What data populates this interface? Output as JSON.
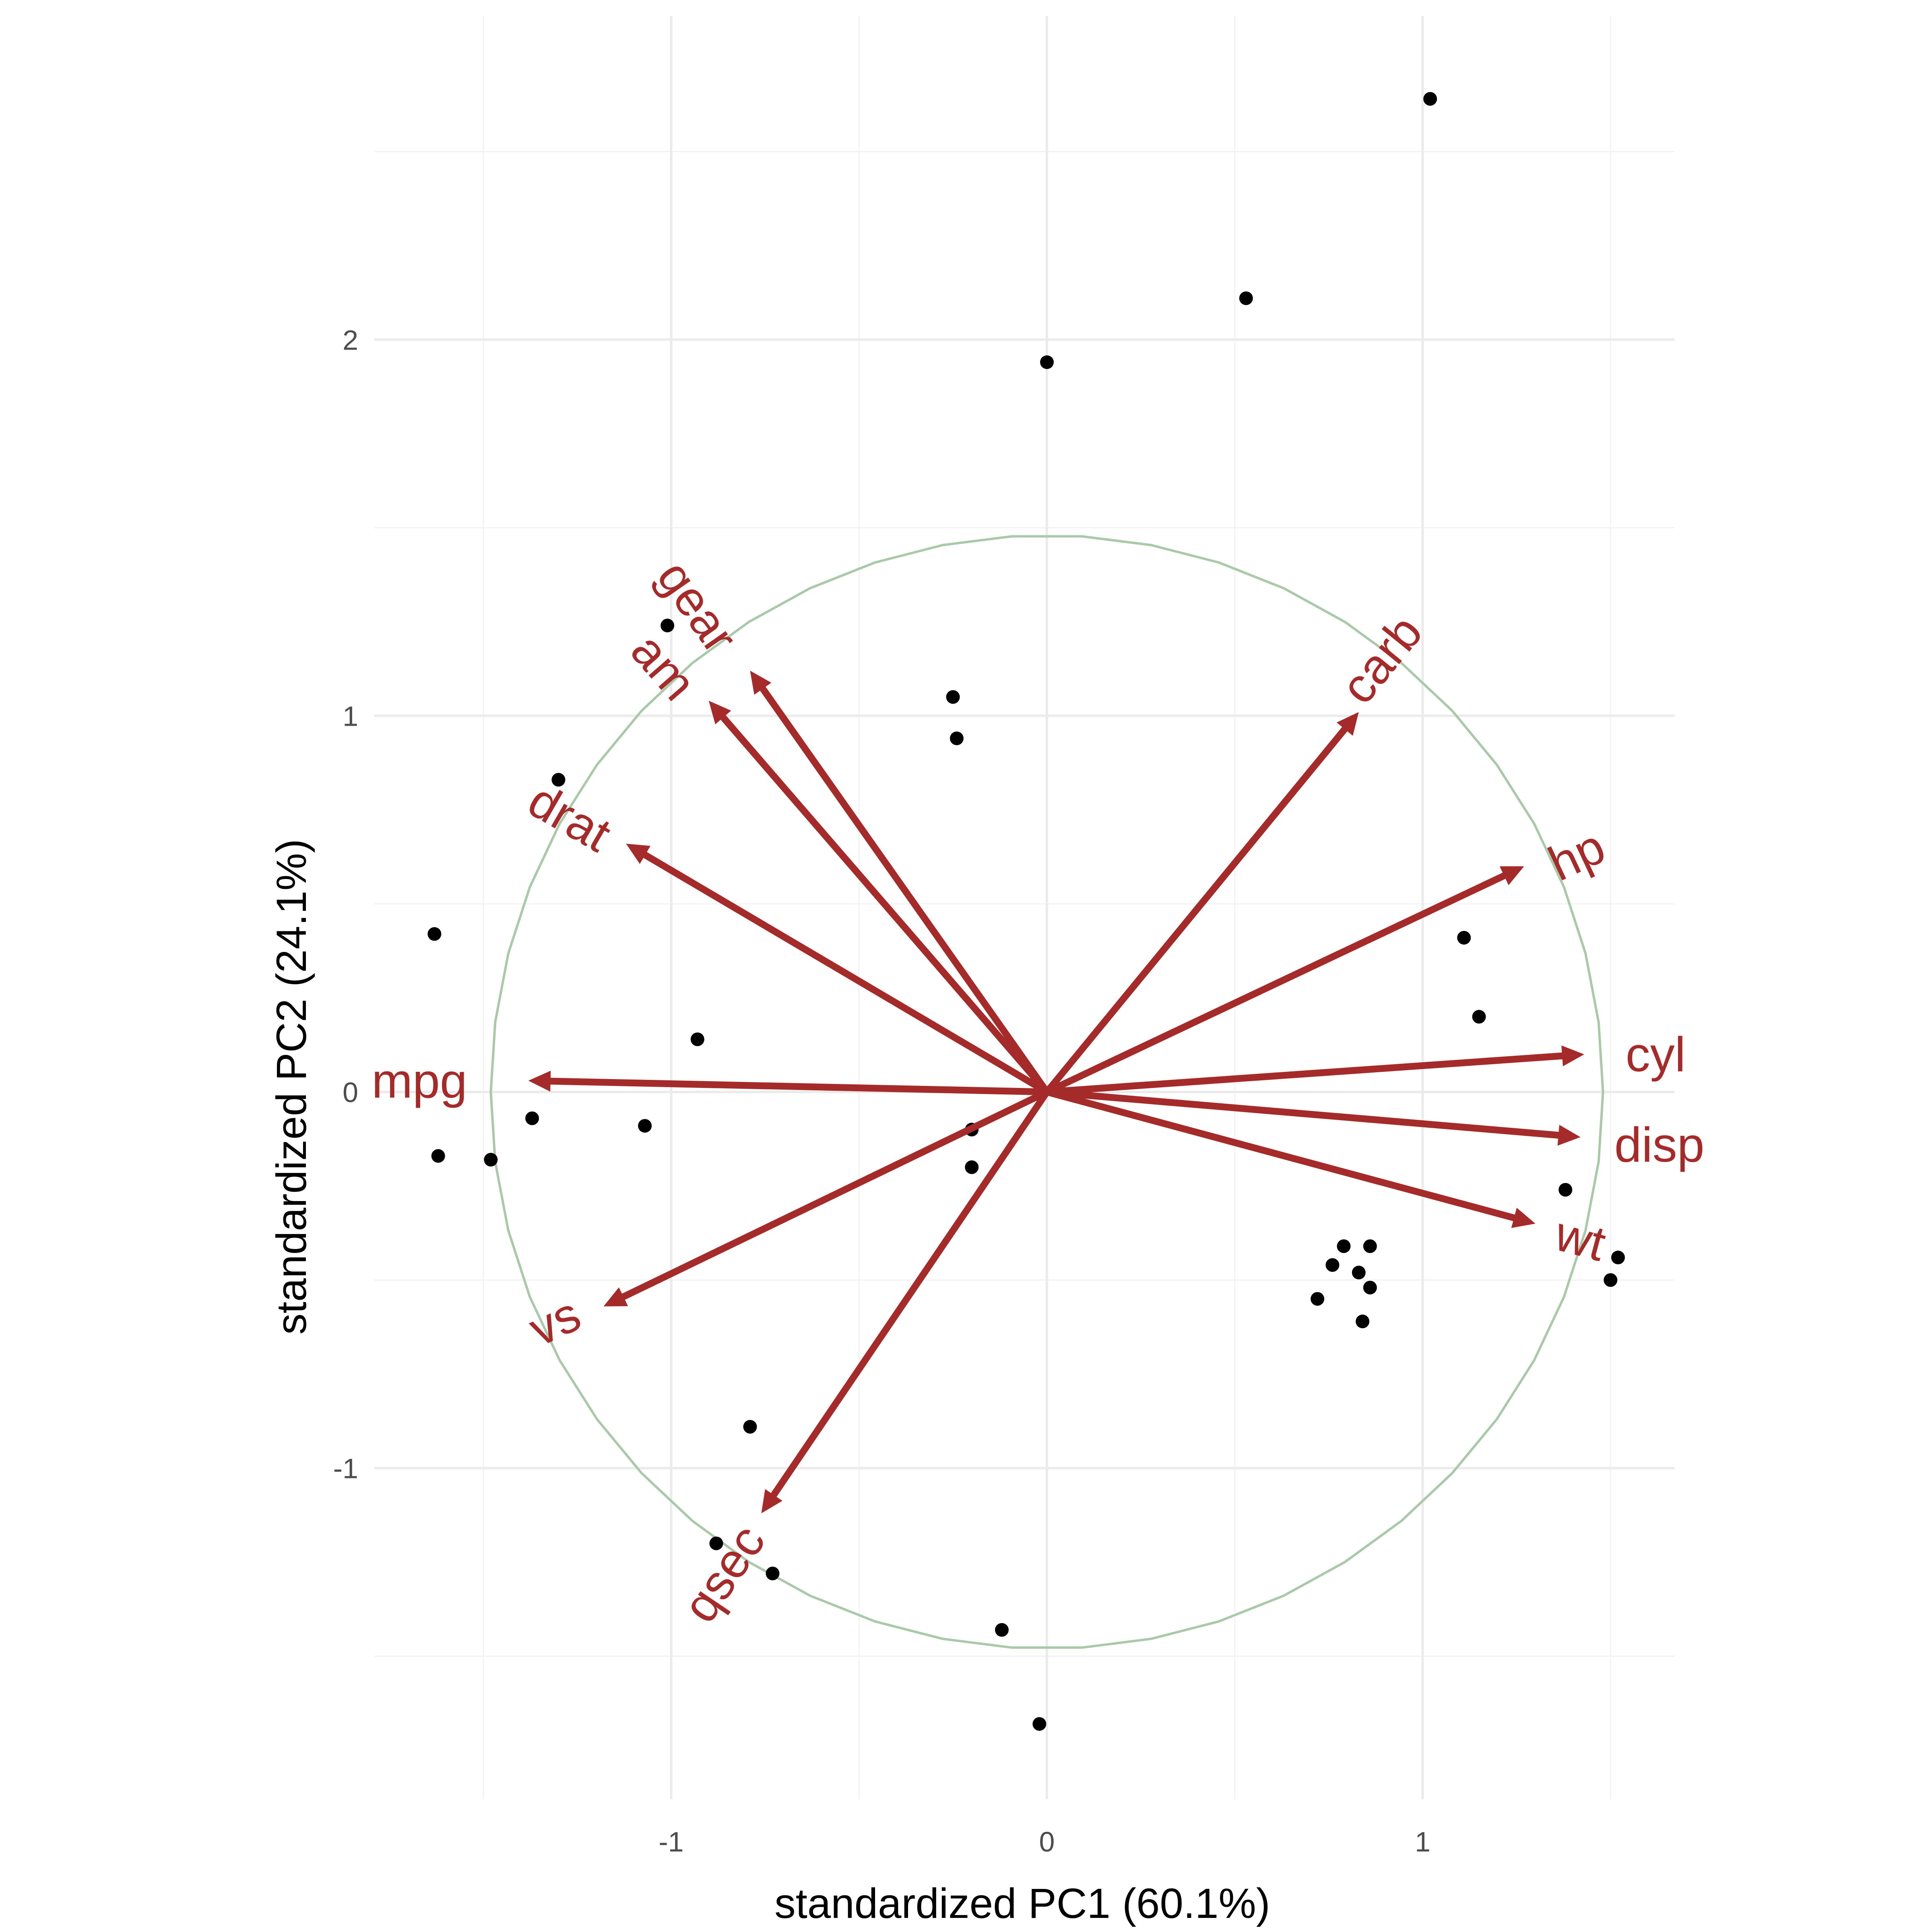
{
  "chart_data": {
    "type": "scatter",
    "subtype": "pca-biplot",
    "xlabel": "standardized PC1 (60.1%)",
    "ylabel": "standardized PC2 (24.1%)",
    "xlim": [
      -1.79,
      1.67
    ],
    "ylim": [
      -1.88,
      2.86
    ],
    "x_ticks": [
      -1,
      0,
      1
    ],
    "y_ticks": [
      -1,
      0,
      1,
      2
    ],
    "x_tick_labels": [
      "-1",
      "0",
      "1"
    ],
    "y_tick_labels": [
      "-1",
      "0",
      "1",
      "2"
    ],
    "grid": true,
    "legend": "none",
    "colors": {
      "points": "#000000",
      "arrows": "#a52a2a",
      "circle": "#a9c9a9"
    },
    "correlation_circle_radius": 1.48,
    "points": [
      {
        "x": 1.02,
        "y": 2.64
      },
      {
        "x": 0.53,
        "y": 2.11
      },
      {
        "x": 0.0,
        "y": 1.94
      },
      {
        "x": -1.01,
        "y": 1.24
      },
      {
        "x": -0.25,
        "y": 1.05
      },
      {
        "x": -0.24,
        "y": 0.94
      },
      {
        "x": -1.3,
        "y": 0.83
      },
      {
        "x": -1.63,
        "y": 0.42
      },
      {
        "x": 1.11,
        "y": 0.41
      },
      {
        "x": 1.15,
        "y": 0.2
      },
      {
        "x": -0.93,
        "y": 0.14
      },
      {
        "x": -1.37,
        "y": -0.07
      },
      {
        "x": -1.07,
        "y": -0.09
      },
      {
        "x": -1.62,
        "y": -0.17
      },
      {
        "x": -1.48,
        "y": -0.18
      },
      {
        "x": -0.2,
        "y": -0.1
      },
      {
        "x": -0.2,
        "y": -0.2
      },
      {
        "x": 1.38,
        "y": -0.26
      },
      {
        "x": 0.79,
        "y": -0.41
      },
      {
        "x": 0.86,
        "y": -0.41
      },
      {
        "x": 0.76,
        "y": -0.46
      },
      {
        "x": 0.83,
        "y": -0.48
      },
      {
        "x": 0.86,
        "y": -0.52
      },
      {
        "x": 0.72,
        "y": -0.55
      },
      {
        "x": 0.84,
        "y": -0.61
      },
      {
        "x": 1.52,
        "y": -0.44
      },
      {
        "x": 1.5,
        "y": -0.5
      },
      {
        "x": -0.79,
        "y": -0.89
      },
      {
        "x": -0.88,
        "y": -1.2
      },
      {
        "x": -0.73,
        "y": -1.28
      },
      {
        "x": -0.12,
        "y": -1.43
      },
      {
        "x": -0.02,
        "y": -1.68
      }
    ],
    "arrows": [
      {
        "name": "mpg",
        "x": -1.38,
        "y": 0.03,
        "label_x": -1.67,
        "label_y": 0.03,
        "angle": 0
      },
      {
        "name": "cyl",
        "x": 1.43,
        "y": 0.1,
        "label_x": 1.62,
        "label_y": 0.1,
        "angle": 0
      },
      {
        "name": "disp",
        "x": 1.42,
        "y": -0.12,
        "label_x": 1.63,
        "label_y": -0.14,
        "angle": 0
      },
      {
        "name": "hp",
        "x": 1.27,
        "y": 0.6,
        "label_x": 1.41,
        "label_y": 0.63,
        "angle": -25
      },
      {
        "name": "drat",
        "x": -1.12,
        "y": 0.66,
        "label_x": -1.27,
        "label_y": 0.73,
        "angle": 30
      },
      {
        "name": "wt",
        "x": 1.3,
        "y": -0.35,
        "label_x": 1.42,
        "label_y": -0.39,
        "angle": 15
      },
      {
        "name": "qsec",
        "x": -0.76,
        "y": -1.12,
        "label_x": -0.86,
        "label_y": -1.28,
        "angle": -56
      },
      {
        "name": "vs",
        "x": -1.18,
        "y": -0.57,
        "label_x": -1.31,
        "label_y": -0.61,
        "angle": -25
      },
      {
        "name": "am",
        "x": -0.9,
        "y": 1.04,
        "label_x": -1.02,
        "label_y": 1.13,
        "angle": 49
      },
      {
        "name": "gear",
        "x": -0.79,
        "y": 1.12,
        "label_x": -0.93,
        "label_y": 1.29,
        "angle": 55
      },
      {
        "name": "carb",
        "x": 0.83,
        "y": 1.01,
        "label_x": 0.89,
        "label_y": 1.15,
        "angle": -51
      }
    ]
  }
}
